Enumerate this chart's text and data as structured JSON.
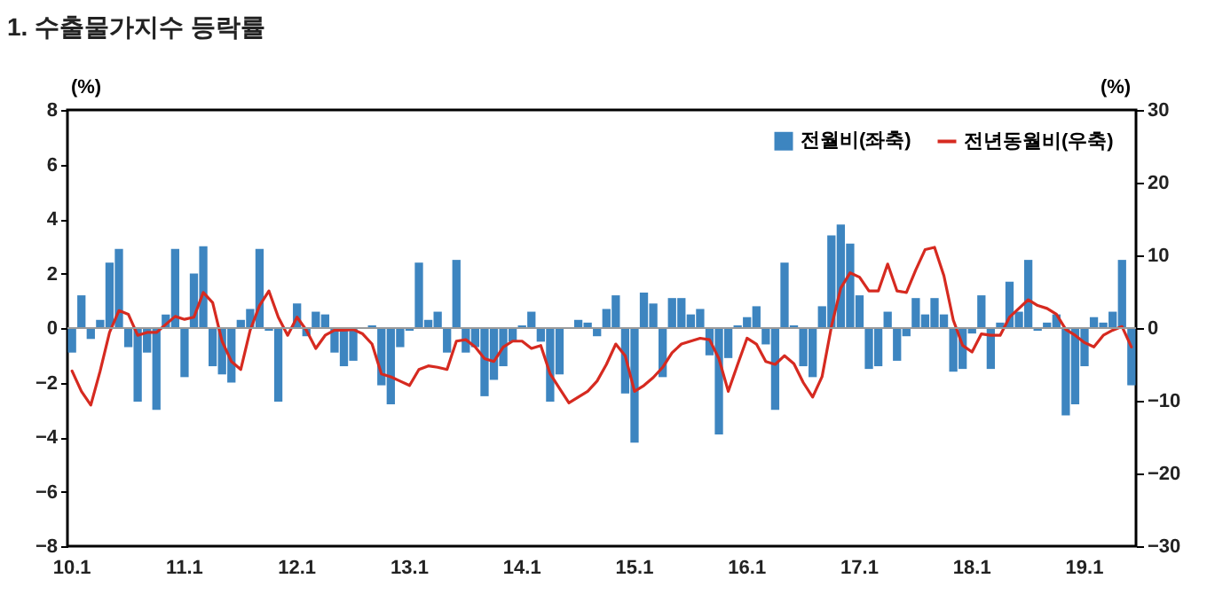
{
  "chart_data": {
    "type": "bar",
    "title": "1. 수출물가지수 등락률",
    "ylabel": "(%)",
    "y2label": "(%)",
    "categories": [
      "10.1",
      null,
      null,
      null,
      null,
      null,
      null,
      null,
      null,
      null,
      null,
      null,
      "11.1",
      null,
      null,
      null,
      null,
      null,
      null,
      null,
      null,
      null,
      null,
      null,
      "12.1",
      null,
      null,
      null,
      null,
      null,
      null,
      null,
      null,
      null,
      null,
      null,
      "13.1",
      null,
      null,
      null,
      null,
      null,
      null,
      null,
      null,
      null,
      null,
      null,
      "14.1",
      null,
      null,
      null,
      null,
      null,
      null,
      null,
      null,
      null,
      null,
      null,
      "15.1",
      null,
      null,
      null,
      null,
      null,
      null,
      null,
      null,
      null,
      null,
      null,
      "16.1",
      null,
      null,
      null,
      null,
      null,
      null,
      null,
      null,
      null,
      null,
      null,
      "17.1",
      null,
      null,
      null,
      null,
      null,
      null,
      null,
      null,
      null,
      null,
      null,
      "18.1",
      null,
      null,
      null,
      null,
      null,
      null,
      null,
      null,
      null,
      null,
      null,
      "19.1",
      null,
      null,
      null,
      null,
      null
    ],
    "series": [
      {
        "name": "전월비(좌축)",
        "color": "#3d85c0",
        "values": [
          -0.9,
          1.2,
          -0.4,
          0.3,
          2.4,
          2.9,
          -0.7,
          -2.7,
          -0.9,
          -3.0,
          0.5,
          2.9,
          -1.8,
          2.0,
          3.0,
          -1.4,
          -1.7,
          -2.0,
          0.3,
          0.7,
          2.9,
          -0.1,
          -2.7,
          0.0,
          0.9,
          -0.3,
          0.6,
          0.5,
          -0.9,
          -1.4,
          -1.2,
          0.0,
          0.1,
          -2.1,
          -2.8,
          -0.7,
          -0.1,
          2.4,
          0.3,
          0.6,
          -0.9,
          2.5,
          -0.9,
          -0.7,
          -2.5,
          -1.9,
          -1.4,
          -0.5,
          0.1,
          0.6,
          -0.5,
          -2.7,
          -1.7,
          0.0,
          0.3,
          0.2,
          -0.3,
          0.7,
          1.2,
          -2.4,
          -4.2,
          1.3,
          0.9,
          -1.8,
          1.1,
          1.1,
          0.5,
          0.7,
          -1.0,
          -3.9,
          -1.1,
          0.1,
          0.4,
          0.8,
          -0.6,
          -3.0,
          2.4,
          0.1,
          -1.4,
          -1.8,
          0.8,
          3.4,
          3.8,
          3.1,
          1.2,
          -1.5,
          -1.4,
          0.6,
          -1.2,
          -0.3,
          1.1,
          0.5,
          1.1,
          0.5,
          -1.6,
          -1.5,
          -0.2,
          1.2,
          -1.5,
          0.2,
          1.7,
          0.6,
          2.5,
          -0.1,
          0.2,
          0.5,
          -3.2,
          -2.8,
          -1.4,
          0.4,
          0.2,
          0.6,
          2.5,
          -2.1
        ]
      },
      {
        "name": "전년동월비(우축)",
        "type": "line",
        "axis": "y2",
        "color": "#d62a20",
        "values": [
          -5.9,
          -8.7,
          -10.6,
          -5.9,
          -0.6,
          2.4,
          1.9,
          -1.0,
          -0.6,
          -0.6,
          0.5,
          1.6,
          1.2,
          1.5,
          4.9,
          3.5,
          -1.8,
          -4.6,
          -5.7,
          -0.3,
          3.1,
          5.1,
          1.5,
          -1.0,
          1.5,
          -0.3,
          -2.8,
          -1.0,
          -0.3,
          -0.3,
          -0.2,
          -0.8,
          -2.2,
          -6.3,
          -6.7,
          -7.3,
          -7.9,
          -5.7,
          -5.2,
          -5.4,
          -5.7,
          -1.8,
          -1.6,
          -2.6,
          -4.2,
          -4.6,
          -2.6,
          -1.8,
          -1.8,
          -2.8,
          -2.4,
          -6.3,
          -8.3,
          -10.3,
          -9.5,
          -8.7,
          -7.3,
          -5.0,
          -2.2,
          -3.8,
          -8.7,
          -7.9,
          -6.8,
          -5.4,
          -3.4,
          -2.2,
          -1.8,
          -1.4,
          -1.6,
          -4.2,
          -8.7,
          -5.0,
          -1.4,
          -2.2,
          -4.6,
          -5.0,
          -3.8,
          -4.9,
          -7.5,
          -9.5,
          -6.7,
          0.2,
          5.5,
          7.6,
          7.0,
          5.1,
          5.1,
          8.8,
          5.1,
          4.9,
          8.0,
          10.8,
          11.1,
          7.2,
          1.1,
          -2.4,
          -3.3,
          -0.8,
          -1.0,
          -1.0,
          1.5,
          2.7,
          3.9,
          3.1,
          2.7,
          1.9,
          -0.2,
          -1.0,
          -2.0,
          -2.6,
          -1.0,
          -0.3,
          0.2,
          -2.6
        ]
      }
    ],
    "ylim": [
      -8,
      8
    ],
    "yticks": [
      -8,
      -6,
      -4,
      -2,
      0,
      2,
      4,
      6,
      8
    ],
    "y2lim": [
      -30,
      30
    ],
    "y2ticks": [
      -30,
      -20,
      -10,
      0,
      10,
      20,
      30
    ],
    "ref_lines": [
      {
        "axis": "y",
        "value": 0,
        "color": "#9a9a9a"
      }
    ],
    "legend": "top right"
  }
}
